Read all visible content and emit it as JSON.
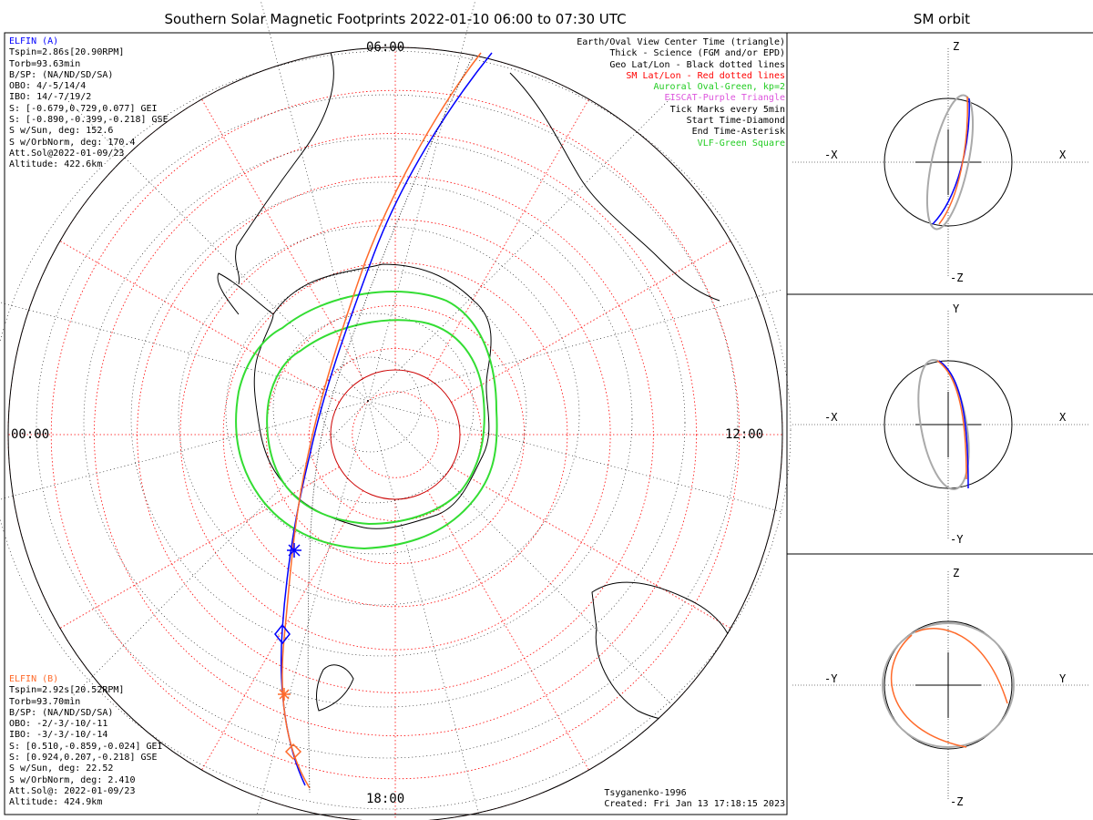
{
  "title": "Southern Solar Magnetic Footprints 2022-01-10 06:00 to 07:30 UTC",
  "orbit_title": "SM orbit",
  "time_labels": {
    "top": "06:00",
    "left": "00:00",
    "right": "12:00",
    "bottom": "18:00"
  },
  "elfin_a": {
    "name": "ELFIN (A)",
    "color": "#0000ff",
    "lines": [
      "Tspin=2.86s[20.90RPM]",
      "Torb=93.63min",
      "B/SP: (NA/ND/SD/SA)",
      "OBO: 4/-5/14/4",
      "IBO: 14/-7/19/2",
      "S: [-0.679,0.729,0.077] GEI",
      "S: [-0.890,-0.399,-0.218] GSE",
      "S w/Sun, deg: 152.6",
      "S w/OrbNorm, deg: 170.4",
      "Att.Sol@2022-01-09/23",
      "Altitude: 422.6km"
    ]
  },
  "elfin_b": {
    "name": "ELFIN (B)",
    "color": "#ff6a2a",
    "lines": [
      "Tspin=2.92s[20.52RPM]",
      "Torb=93.70min",
      "B/SP: (NA/ND/SD/SA)",
      "OBO: -2/-3/-10/-11",
      "IBO: -3/-3/-10/-14",
      "S: [0.510,-0.859,-0.024] GEI",
      "S: [0.924,0.207,-0.218] GSE",
      "S w/Sun, deg: 22.52",
      "S w/OrbNorm, deg: 2.410",
      "Att.Sol@: 2022-01-09/23",
      "Altitude: 424.9km"
    ]
  },
  "legend": [
    {
      "text": "Earth/Oval View Center Time (triangle)",
      "color": "#000000"
    },
    {
      "text": "Thick - Science (FGM and/or EPD)",
      "color": "#000000"
    },
    {
      "text": "Geo Lat/Lon - Black dotted lines",
      "color": "#000000"
    },
    {
      "text": "SM Lat/Lon - Red dotted lines",
      "color": "#ff0000"
    },
    {
      "text": "Auroral Oval-Green, kp=2",
      "color": "#22cc22"
    },
    {
      "text": "EISCAT-Purple Triangle",
      "color": "#dd55dd"
    },
    {
      "text": "Tick Marks every 5min",
      "color": "#000000"
    },
    {
      "text": "Start Time-Diamond",
      "color": "#000000"
    },
    {
      "text": "End Time-Asterisk",
      "color": "#000000"
    },
    {
      "text": "VLF-Green Square",
      "color": "#22cc22"
    }
  ],
  "credits": {
    "model": "Tsyganenko-1996",
    "created": "Created: Fri Jan 13 17:18:15 2023"
  },
  "orbit_panels": [
    {
      "top": "Z",
      "bottom": "-Z",
      "left": "-X",
      "right": "X"
    },
    {
      "top": "Y",
      "bottom": "-Y",
      "left": "-X",
      "right": "X"
    },
    {
      "top": "Z",
      "bottom": "-Z",
      "left": "-Y",
      "right": "Y"
    }
  ],
  "colors": {
    "elfin_a": "#0000ff",
    "elfin_b": "#ff6a2a",
    "sm_grid": "#ff0000",
    "oval": "#33dd33",
    "geo_grid": "#000000"
  }
}
